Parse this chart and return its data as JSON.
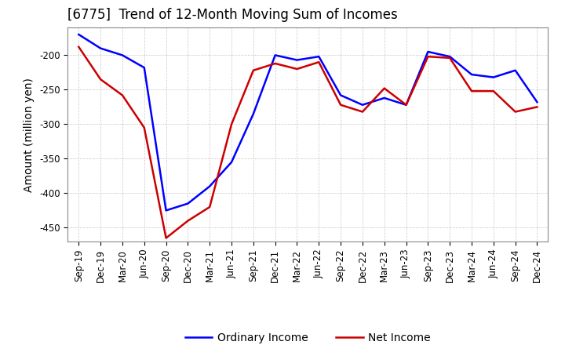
{
  "title": "[6775]  Trend of 12-Month Moving Sum of Incomes",
  "ylabel": "Amount (million yen)",
  "ylim": [
    -470,
    -160
  ],
  "yticks": [
    -450,
    -400,
    -350,
    -300,
    -250,
    -200
  ],
  "background_color": "#ffffff",
  "plot_bg_color": "#ffffff",
  "grid_color": "#aaaaaa",
  "labels": [
    "Sep-19",
    "Dec-19",
    "Mar-20",
    "Jun-20",
    "Sep-20",
    "Dec-20",
    "Mar-21",
    "Jun-21",
    "Sep-21",
    "Dec-21",
    "Mar-22",
    "Jun-22",
    "Sep-22",
    "Dec-22",
    "Mar-23",
    "Jun-23",
    "Sep-23",
    "Dec-23",
    "Mar-24",
    "Jun-24",
    "Sep-24",
    "Dec-24"
  ],
  "ordinary_income": [
    -170,
    -190,
    -200,
    -218,
    -425,
    -415,
    -390,
    -355,
    -285,
    -200,
    -207,
    -202,
    -258,
    -272,
    -262,
    -272,
    -195,
    -202,
    -228,
    -232,
    -222,
    -268
  ],
  "net_income": [
    -188,
    -235,
    -258,
    -305,
    -465,
    -440,
    -420,
    -300,
    -222,
    -212,
    -220,
    -210,
    -272,
    -282,
    -248,
    -272,
    -202,
    -204,
    -252,
    -252,
    -282,
    -275
  ],
  "ordinary_income_color": "#0000ff",
  "net_income_color": "#cc0000",
  "line_width": 1.8,
  "title_fontsize": 12,
  "label_fontsize": 10,
  "tick_fontsize": 8.5
}
